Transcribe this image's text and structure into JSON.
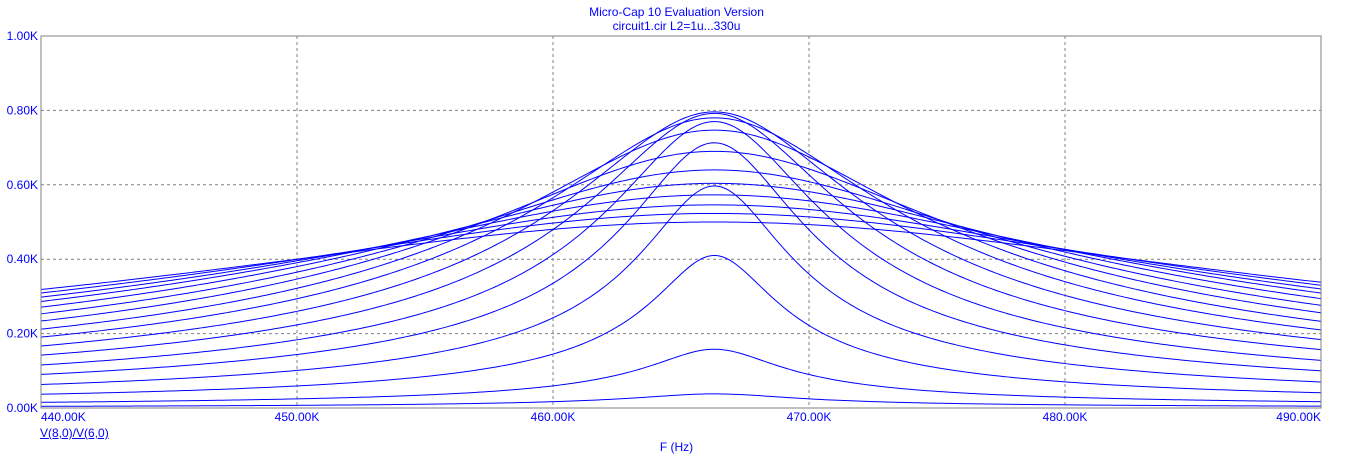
{
  "chart_data": {
    "type": "line",
    "title": "Micro-Cap 10 Evaluation Version",
    "subtitle": "circuit1.cir L2=1u...330u",
    "xlabel": "F (Hz)",
    "ylabel": "",
    "legend": "V(8,0)/V(6,0)",
    "xlim": [
      440000,
      490000
    ],
    "ylim": [
      0,
      1000
    ],
    "x_ticks": [
      440000,
      450000,
      460000,
      470000,
      480000,
      490000
    ],
    "x_tick_labels": [
      "440.00K",
      "450.00K",
      "460.00K",
      "470.00K",
      "480.00K",
      "490.00K"
    ],
    "y_ticks": [
      0,
      200,
      400,
      600,
      800,
      1000
    ],
    "y_tick_labels": [
      "0.00K",
      "0.20K",
      "0.40K",
      "0.60K",
      "0.80K",
      "1.00K"
    ],
    "grid": true,
    "series_color": "#0000ff",
    "grid_color": "#808080",
    "resonance_frequency": 466300,
    "curves": [
      {
        "peak": 38,
        "edge": 5
      },
      {
        "peak": 158,
        "edge": 17
      },
      {
        "peak": 410,
        "edge": 41
      },
      {
        "peak": 597,
        "edge": 70
      },
      {
        "peak": 713,
        "edge": 100
      },
      {
        "peak": 770,
        "edge": 128
      },
      {
        "peak": 792,
        "edge": 157
      },
      {
        "peak": 796,
        "edge": 184
      },
      {
        "peak": 780,
        "edge": 210
      },
      {
        "peak": 747,
        "edge": 233
      },
      {
        "peak": 690,
        "edge": 256
      },
      {
        "peak": 640,
        "edge": 276
      },
      {
        "peak": 604,
        "edge": 294
      },
      {
        "peak": 573,
        "edge": 309
      },
      {
        "peak": 546,
        "edge": 320
      },
      {
        "peak": 523,
        "edge": 330
      },
      {
        "peak": 500,
        "edge": 338
      }
    ]
  }
}
